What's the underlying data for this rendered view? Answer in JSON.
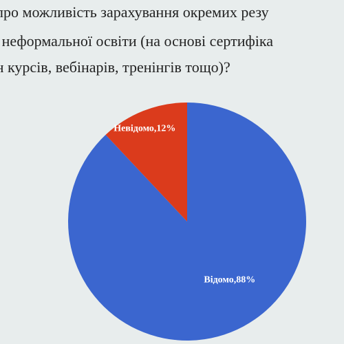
{
  "slide": {
    "title_lines": [
      "вам про можливість зарахування окремих резу",
      "ках неформальної освіти (на основі сертифіка",
      "йн курсів, вебінарів, тренінгів тощо)?"
    ]
  },
  "chart_data": {
    "type": "pie",
    "title": "",
    "slices": [
      {
        "label": "Відомо",
        "value": 88,
        "display": "Відомо,88%",
        "color": "#3b66cf"
      },
      {
        "label": "Невідомо",
        "value": 12,
        "display": "Невідомо,12%",
        "color": "#db3b1c"
      }
    ],
    "start_angle_deg": 0,
    "direction": "clockwise",
    "legend": "none"
  }
}
